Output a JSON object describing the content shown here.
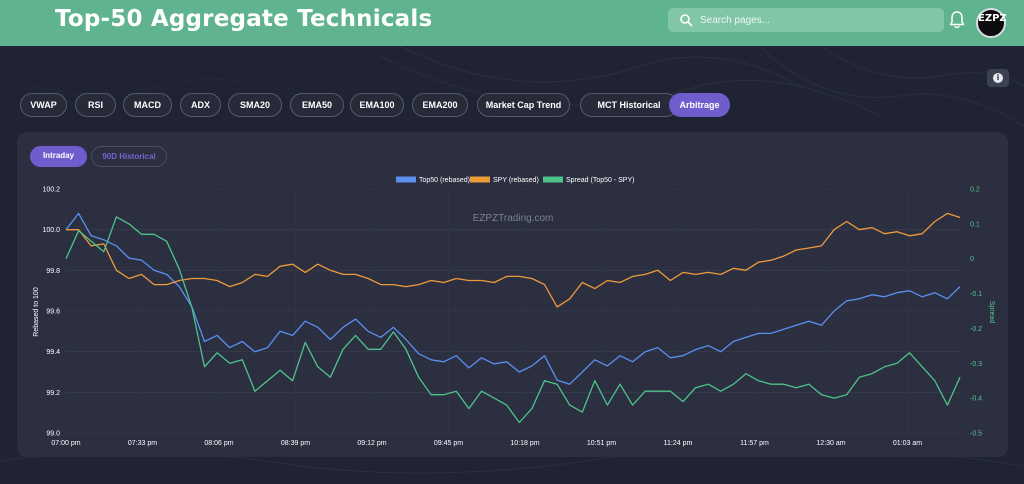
{
  "header": {
    "title": "Top-50 Aggregate Technicals",
    "search_placeholder": "Search pages...",
    "avatar_text": "EZPZ"
  },
  "tabs": [
    {
      "label": "VWAP",
      "active": false
    },
    {
      "label": "RSI",
      "active": false
    },
    {
      "label": "MACD",
      "active": false
    },
    {
      "label": "ADX",
      "active": false
    },
    {
      "label": "SMA20",
      "active": false
    },
    {
      "label": "EMA50",
      "active": false
    },
    {
      "label": "EMA100",
      "active": false
    },
    {
      "label": "EMA200",
      "active": false
    },
    {
      "label": "Market Cap Trend",
      "active": false
    },
    {
      "label": "MCT Historical",
      "active": false
    },
    {
      "label": "Arbitrage",
      "active": true
    }
  ],
  "subtabs": [
    {
      "label": "Intraday",
      "active": true
    },
    {
      "label": "90D Historical",
      "active": false
    }
  ],
  "colors": {
    "header_bg": "#5fb48f",
    "accent": "#6f5ccd",
    "page_bg": "#1f2333",
    "card_bg": "#2b2f40",
    "top50": "#5b8ff0",
    "spy": "#ee9b3b",
    "spread": "#4fc28b"
  },
  "chart_data": {
    "type": "line",
    "watermark": "EZPZTrading.com",
    "ylabel": "Rebased to 100",
    "y2label": "Spread",
    "ylim": [
      99.0,
      100.2
    ],
    "y2lim": [
      -0.5,
      0.2
    ],
    "yticks": [
      "100.2",
      "100.0",
      "99.8",
      "99.6",
      "99.4",
      "99.2",
      "99.0"
    ],
    "y2ticks": [
      "0.2",
      "0.1",
      "0",
      "-0.1",
      "-0.2",
      "-0.3",
      "-0.4",
      "-0.5"
    ],
    "xticks": [
      "07:00 pm",
      "07:33 pm",
      "08:06 pm",
      "08:39 pm",
      "09:12 pm",
      "09:45 pm",
      "10:18 pm",
      "10:51 pm",
      "11:24 pm",
      "11:57 pm",
      "12:30 am",
      "01:03 am"
    ],
    "grid": true,
    "legend_position": "top",
    "series": [
      {
        "name": "Top50 (rebased)",
        "axis": "left",
        "values": [
          100.0,
          100.08,
          99.97,
          99.95,
          99.92,
          99.86,
          99.85,
          99.8,
          99.78,
          99.72,
          99.62,
          99.45,
          99.48,
          99.42,
          99.45,
          99.4,
          99.42,
          99.5,
          99.48,
          99.55,
          99.52,
          99.46,
          99.52,
          99.56,
          99.5,
          99.47,
          99.52,
          99.46,
          99.39,
          99.36,
          99.35,
          99.38,
          99.32,
          99.37,
          99.34,
          99.35,
          99.3,
          99.33,
          99.38,
          99.26,
          99.24,
          99.3,
          99.36,
          99.33,
          99.38,
          99.35,
          99.4,
          99.42,
          99.37,
          99.38,
          99.41,
          99.43,
          99.4,
          99.45,
          99.47,
          99.49,
          99.49,
          99.51,
          99.53,
          99.55,
          99.53,
          99.6,
          99.65,
          99.66,
          99.68,
          99.67,
          99.69,
          99.7,
          99.67,
          99.69,
          99.66,
          99.72
        ]
      },
      {
        "name": "SPY (rebased)",
        "axis": "left",
        "values": [
          100.0,
          100.0,
          99.92,
          99.93,
          99.8,
          99.76,
          99.78,
          99.73,
          99.73,
          99.75,
          99.76,
          99.76,
          99.75,
          99.72,
          99.74,
          99.78,
          99.77,
          99.82,
          99.83,
          99.79,
          99.83,
          99.8,
          99.78,
          99.78,
          99.76,
          99.73,
          99.73,
          99.72,
          99.73,
          99.75,
          99.74,
          99.76,
          99.75,
          99.75,
          99.74,
          99.77,
          99.77,
          99.76,
          99.73,
          99.62,
          99.66,
          99.74,
          99.71,
          99.75,
          99.74,
          99.77,
          99.78,
          99.8,
          99.75,
          99.79,
          99.78,
          99.79,
          99.78,
          99.81,
          99.8,
          99.84,
          99.85,
          99.87,
          99.9,
          99.91,
          99.92,
          100.0,
          100.04,
          100.0,
          100.01,
          99.98,
          99.99,
          99.97,
          99.98,
          100.04,
          100.08,
          100.06
        ]
      },
      {
        "name": "Spread (Top50 - SPY)",
        "axis": "right",
        "values": [
          0.0,
          0.08,
          0.05,
          0.02,
          0.12,
          0.1,
          0.07,
          0.07,
          0.05,
          -0.03,
          -0.14,
          -0.31,
          -0.27,
          -0.3,
          -0.29,
          -0.38,
          -0.35,
          -0.32,
          -0.35,
          -0.24,
          -0.31,
          -0.34,
          -0.26,
          -0.22,
          -0.26,
          -0.26,
          -0.21,
          -0.26,
          -0.34,
          -0.39,
          -0.39,
          -0.38,
          -0.43,
          -0.38,
          -0.4,
          -0.42,
          -0.47,
          -0.43,
          -0.35,
          -0.36,
          -0.42,
          -0.44,
          -0.35,
          -0.42,
          -0.36,
          -0.42,
          -0.38,
          -0.38,
          -0.38,
          -0.41,
          -0.37,
          -0.36,
          -0.38,
          -0.36,
          -0.33,
          -0.35,
          -0.36,
          -0.36,
          -0.37,
          -0.36,
          -0.39,
          -0.4,
          -0.39,
          -0.34,
          -0.33,
          -0.31,
          -0.3,
          -0.27,
          -0.31,
          -0.35,
          -0.42,
          -0.34
        ]
      }
    ]
  }
}
